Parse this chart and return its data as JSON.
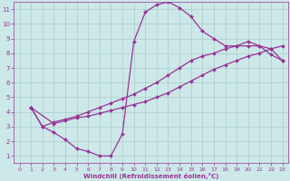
{
  "bg_color": "#cce8e8",
  "grid_color": "#aacccc",
  "line_color": "#993399",
  "marker_color": "#993399",
  "xlabel": "Windchill (Refroidissement éolien,°C)",
  "xlabel_color": "#993399",
  "tick_color": "#993399",
  "xlim": [
    -0.5,
    23.5
  ],
  "ylim": [
    0.5,
    11.5
  ],
  "xticks": [
    0,
    1,
    2,
    3,
    4,
    5,
    6,
    7,
    8,
    9,
    10,
    11,
    12,
    13,
    14,
    15,
    16,
    17,
    18,
    19,
    20,
    21,
    22,
    23
  ],
  "yticks": [
    1,
    2,
    3,
    4,
    5,
    6,
    7,
    8,
    9,
    10,
    11
  ],
  "curve1_x": [
    1,
    2,
    3,
    4,
    5,
    6,
    7,
    8,
    9,
    10,
    11,
    12,
    13,
    14,
    15,
    16,
    17,
    18,
    19,
    20,
    21,
    22,
    23
  ],
  "curve1_y": [
    4.3,
    3.0,
    2.6,
    2.1,
    1.5,
    1.3,
    1.0,
    1.0,
    2.5,
    8.8,
    10.8,
    11.3,
    11.5,
    11.1,
    10.5,
    9.5,
    9.0,
    8.5,
    8.5,
    8.5,
    8.5,
    7.9,
    7.5
  ],
  "curve2_x": [
    1,
    3,
    4,
    5,
    6,
    7,
    8,
    9,
    10,
    11,
    12,
    13,
    14,
    15,
    16,
    17,
    18,
    19,
    20,
    21,
    22,
    23
  ],
  "curve2_y": [
    4.3,
    3.2,
    3.4,
    3.6,
    3.7,
    3.9,
    4.1,
    4.3,
    4.5,
    4.7,
    5.0,
    5.3,
    5.7,
    6.1,
    6.5,
    6.9,
    7.2,
    7.5,
    7.8,
    8.0,
    8.3,
    7.5
  ],
  "curve3_x": [
    1,
    2,
    3,
    4,
    5,
    6,
    7,
    8,
    9,
    10,
    11,
    12,
    13,
    14,
    15,
    16,
    17,
    18,
    19,
    20,
    21,
    22,
    23
  ],
  "curve3_y": [
    4.3,
    3.0,
    3.3,
    3.5,
    3.7,
    4.0,
    4.3,
    4.6,
    4.9,
    5.2,
    5.6,
    6.0,
    6.5,
    7.0,
    7.5,
    7.8,
    8.0,
    8.3,
    8.5,
    8.8,
    8.5,
    8.3,
    8.5
  ]
}
